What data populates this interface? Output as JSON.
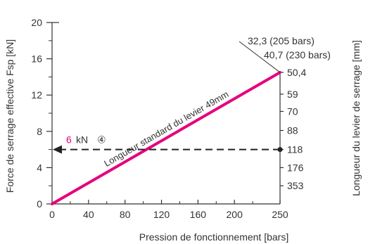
{
  "chart_data": {
    "type": "line",
    "xlabel": "Pression de fonctionnement [bars]",
    "ylabel_left": "Force de serrage effective Fsp [kN]",
    "ylabel_right": "Longueur du levier de serrage [mm]",
    "xlim": [
      0,
      250
    ],
    "ylim": [
      0,
      20
    ],
    "x_ticks": [
      0,
      40,
      80,
      120,
      160,
      200,
      250
    ],
    "y_ticks": [
      0,
      4,
      8,
      12,
      16,
      20
    ],
    "grid": false,
    "series": [
      {
        "name": "Longueur standard du levier 49mm",
        "color": "#e6007e",
        "points": [
          [
            0,
            0
          ],
          [
            250,
            14.5
          ]
        ]
      }
    ],
    "right_axis_labels": [
      {
        "label": "50,4",
        "y": 14.5
      },
      {
        "label": "59",
        "y": 12.1
      },
      {
        "label": "70",
        "y": 10.2
      },
      {
        "label": "88",
        "y": 8.1
      },
      {
        "label": "118",
        "y": 6
      },
      {
        "label": "176",
        "y": 4.0
      },
      {
        "label": "353",
        "y": 2.0
      }
    ],
    "annotations": {
      "bars_205": "32,3 (205 bars)",
      "bars_230": "40,7 (230 bars)",
      "example_value": "6",
      "example_unit": "kN",
      "example_marker": "④",
      "example_y": 6,
      "example_x_end": 250
    },
    "colors": {
      "line": "#e6007e",
      "axis": "#333333",
      "text": "#333333",
      "highlight": "#e6007e"
    }
  }
}
